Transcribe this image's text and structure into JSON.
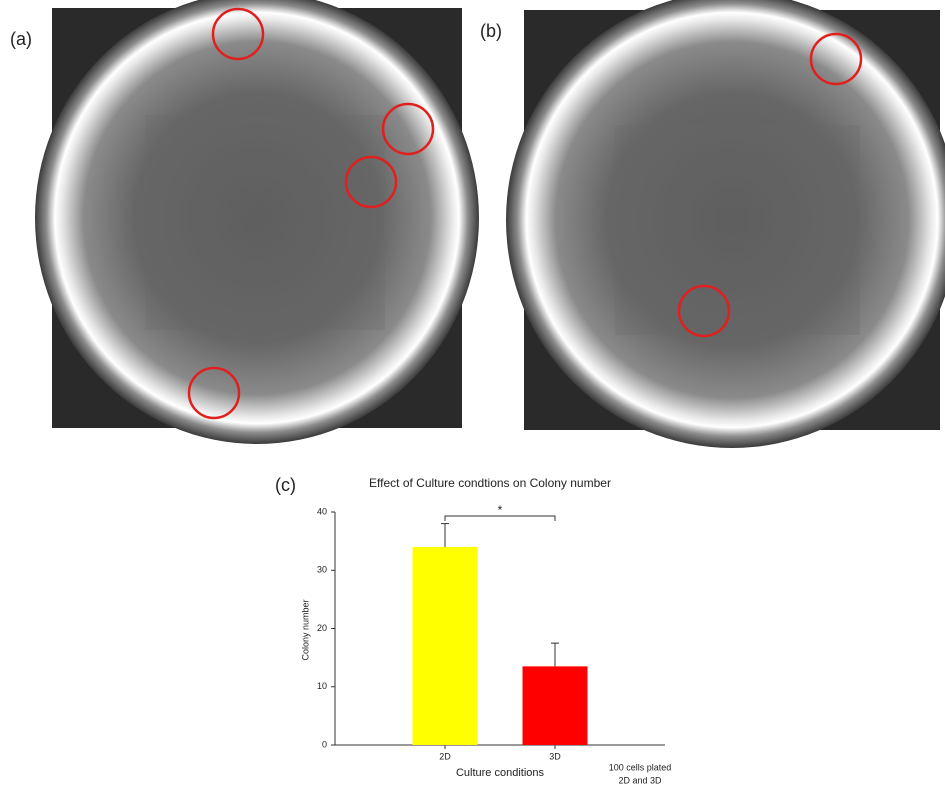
{
  "panel_labels": [
    "(a)",
    "(b)",
    "(c)"
  ],
  "chart_data": {
    "type": "bar",
    "title": "Effect of Culture condtions on Colony number",
    "xlabel": "Culture conditions",
    "ylabel": "Colony number",
    "categories": [
      "2D",
      "3D"
    ],
    "values": [
      34,
      13.5
    ],
    "errors": [
      4,
      4
    ],
    "colors": [
      "#ffff00",
      "#ff0000"
    ],
    "ylim": [
      0,
      40
    ],
    "yticks": [
      0,
      10,
      20,
      30,
      40
    ],
    "significance": "*",
    "annotation": [
      "100 cells plated",
      "2D and 3D"
    ]
  }
}
